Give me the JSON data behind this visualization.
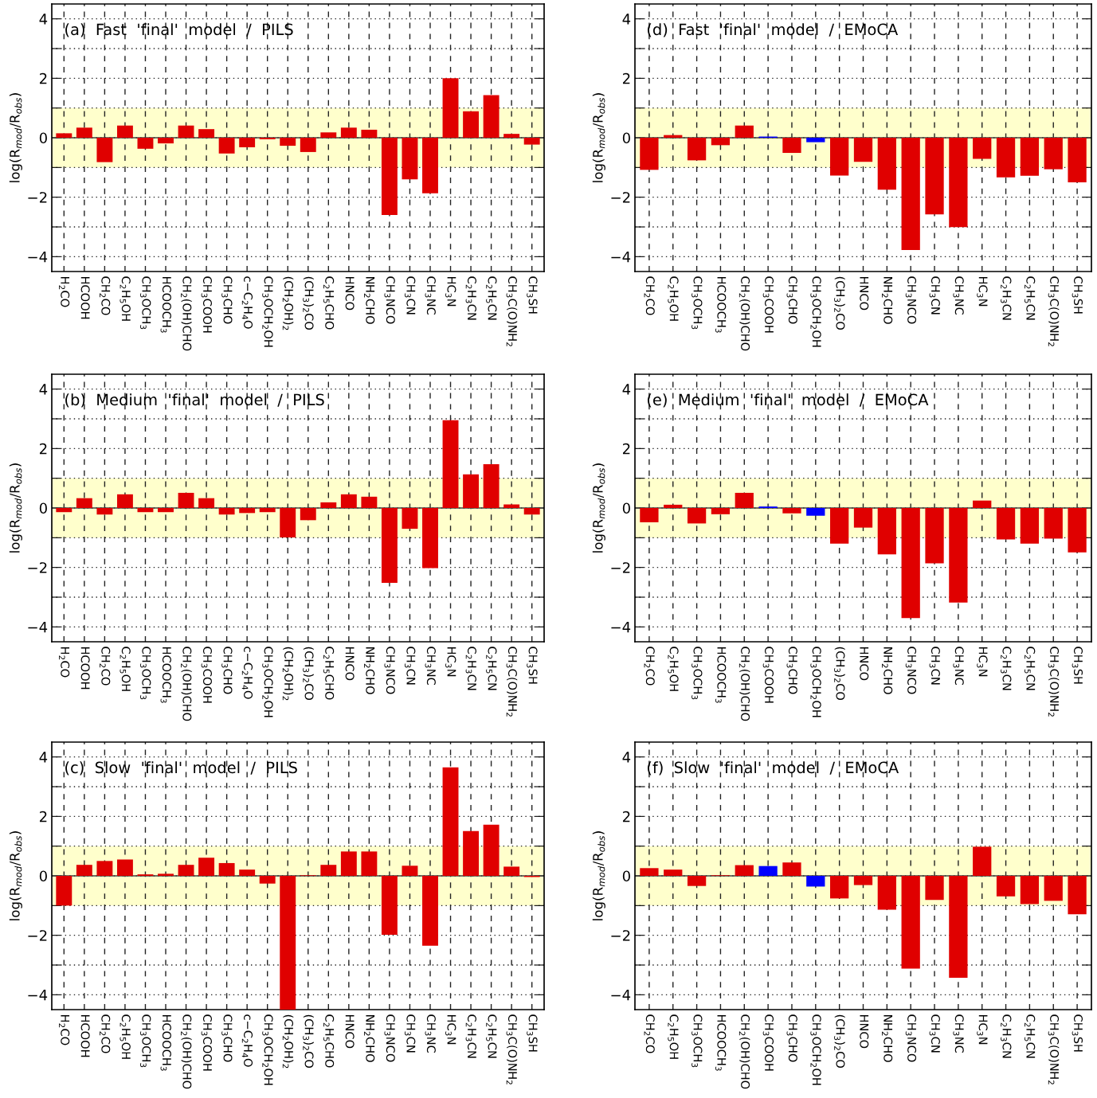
{
  "chart_data": [
    {
      "type": "bar",
      "title": "(a)  Fast  'final'  model  /  PILS",
      "ylabel": "log(R$_{mod}$/R$_{obs}$)",
      "categories": [
        "H$_{2}$CO",
        "HCOOH",
        "CH$_{2}$CO",
        "C$_{2}$H$_{5}$OH",
        "CH$_{3}$OCH$_{3}$",
        "HCOOCH$_{3}$",
        "CH$_{2}$(OH)CHO",
        "CH$_{3}$COOH",
        "CH$_{3}$CHO",
        "c−C$_{2}$H$_{4}$O",
        "CH$_{3}$OCH$_{2}$OH",
        "(CH$_{2}$OH)$_{2}$",
        "(CH$_{3}$)$_{2}$CO",
        "C$_{2}$H$_{5}$CHO",
        "HNCO",
        "NH$_{2}$CHO",
        "CH$_{3}$NCO",
        "CH$_{3}$CN",
        "CH$_{3}$NC",
        "HC$_{3}$N",
        "C$_{2}$H$_{3}$CN",
        "C$_{2}$H$_{5}$CN",
        "CH$_{3}$C(O)NH$_{2}$",
        "CH$_{3}$SH"
      ],
      "values": [
        0.15,
        0.34,
        -0.82,
        0.41,
        -0.37,
        -0.19,
        0.41,
        0.29,
        -0.53,
        -0.32,
        -0.05,
        -0.27,
        -0.48,
        0.18,
        0.34,
        0.27,
        -2.6,
        -1.4,
        -1.87,
        2.0,
        0.89,
        1.43,
        0.13,
        -0.23
      ],
      "colors": [
        "#e00000",
        "#e00000",
        "#e00000",
        "#e00000",
        "#e00000",
        "#e00000",
        "#e00000",
        "#e00000",
        "#e00000",
        "#e00000",
        "#e00000",
        "#e00000",
        "#e00000",
        "#e00000",
        "#e00000",
        "#e00000",
        "#e00000",
        "#e00000",
        "#e00000",
        "#e00000",
        "#e00000",
        "#e00000",
        "#e00000",
        "#e00000"
      ],
      "ylim": [
        -4.5,
        4.5
      ],
      "yticks": [
        -4,
        {
          "value": -3,
          "label": null
        },
        -2,
        {
          "value": -1,
          "label": null
        },
        0,
        {
          "value": 1,
          "label": null
        },
        2,
        {
          "value": 3,
          "label": null
        },
        4
      ],
      "grid": true,
      "bands": [
        {
          "axis": "y",
          "from": -1,
          "to": 1,
          "color": "#ffffcc"
        }
      ],
      "ref_lines": [
        {
          "axis": "y",
          "value": 0,
          "color": "#404040"
        }
      ]
    },
    {
      "type": "bar",
      "title": "(d)  Fast  'final'  model  /  EMoCA",
      "ylabel": "log(R$_{mod}$/R$_{obs}$)",
      "categories": [
        "CH$_{2}$CO",
        "C$_{2}$H$_{5}$OH",
        "CH$_{3}$OCH$_{3}$",
        "HCOOCH$_{3}$",
        "CH$_{2}$(OH)CHO",
        "CH$_{3}$COOH",
        "CH$_{3}$CHO",
        "CH$_{3}$OCH$_{2}$OH",
        "(CH$_{3}$)$_{2}$CO",
        "HNCO",
        "NH$_{2}$CHO",
        "CH$_{3}$NCO",
        "CH$_{3}$CN",
        "CH$_{3}$NC",
        "HC$_{3}$N",
        "C$_{2}$H$_{3}$CN",
        "C$_{2}$H$_{5}$CN",
        "CH$_{3}$C(O)NH$_{2}$",
        "CH$_{3}$SH"
      ],
      "values": [
        -1.08,
        0.09,
        -0.76,
        -0.25,
        0.41,
        0.04,
        -0.51,
        -0.15,
        -1.27,
        -0.81,
        -1.75,
        -3.78,
        -2.58,
        -3.01,
        -0.71,
        -1.33,
        -1.28,
        -1.06,
        -1.5
      ],
      "colors": [
        "#e00000",
        "#e00000",
        "#e00000",
        "#e00000",
        "#e00000",
        "#0000ff",
        "#e00000",
        "#0000ff",
        "#e00000",
        "#e00000",
        "#e00000",
        "#e00000",
        "#e00000",
        "#e00000",
        "#e00000",
        "#e00000",
        "#e00000",
        "#e00000",
        "#e00000"
      ],
      "ylim": [
        -4.5,
        4.5
      ],
      "yticks": [
        -4,
        {
          "value": -3,
          "label": null
        },
        -2,
        {
          "value": -1,
          "label": null
        },
        0,
        {
          "value": 1,
          "label": null
        },
        2,
        {
          "value": 3,
          "label": null
        },
        4
      ],
      "grid": true,
      "bands": [
        {
          "axis": "y",
          "from": -1,
          "to": 1,
          "color": "#ffffcc"
        }
      ],
      "ref_lines": [
        {
          "axis": "y",
          "value": 0,
          "color": "#404040"
        }
      ]
    },
    {
      "type": "bar",
      "title": "(b)  Medium  'final'  model  /  PILS",
      "ylabel": "log(R$_{mod}$/R$_{obs}$)",
      "categories": [
        "H$_{2}$CO",
        "HCOOH",
        "CH$_{2}$CO",
        "C$_{2}$H$_{5}$OH",
        "CH$_{3}$OCH$_{3}$",
        "HCOOCH$_{3}$",
        "CH$_{2}$(OH)CHO",
        "CH$_{3}$COOH",
        "CH$_{3}$CHO",
        "c−C$_{2}$H$_{4}$O",
        "CH$_{3}$OCH$_{2}$OH",
        "(CH$_{2}$OH)$_{2}$",
        "(CH$_{3}$)$_{2}$CO",
        "C$_{2}$H$_{5}$CHO",
        "HNCO",
        "NH$_{2}$CHO",
        "CH$_{3}$NCO",
        "CH$_{3}$CN",
        "CH$_{3}$NC",
        "HC$_{3}$N",
        "C$_{2}$H$_{3}$CN",
        "C$_{2}$H$_{5}$CN",
        "CH$_{3}$C(O)NH$_{2}$",
        "CH$_{3}$SH"
      ],
      "values": [
        -0.14,
        0.33,
        -0.22,
        0.46,
        -0.14,
        -0.14,
        0.51,
        0.33,
        -0.22,
        -0.17,
        -0.14,
        -0.99,
        -0.41,
        0.19,
        0.46,
        0.38,
        -2.52,
        -0.7,
        -2.02,
        2.95,
        1.13,
        1.47,
        0.12,
        -0.22
      ],
      "colors": [
        "#e00000",
        "#e00000",
        "#e00000",
        "#e00000",
        "#e00000",
        "#e00000",
        "#e00000",
        "#e00000",
        "#e00000",
        "#e00000",
        "#e00000",
        "#e00000",
        "#e00000",
        "#e00000",
        "#e00000",
        "#e00000",
        "#e00000",
        "#e00000",
        "#e00000",
        "#e00000",
        "#e00000",
        "#e00000",
        "#e00000",
        "#e00000"
      ],
      "ylim": [
        -4.5,
        4.5
      ],
      "yticks": [
        -4,
        {
          "value": -3,
          "label": null
        },
        -2,
        {
          "value": -1,
          "label": null
        },
        0,
        {
          "value": 1,
          "label": null
        },
        2,
        {
          "value": 3,
          "label": null
        },
        4
      ],
      "grid": true,
      "bands": [
        {
          "axis": "y",
          "from": -1,
          "to": 1,
          "color": "#ffffcc"
        }
      ],
      "ref_lines": [
        {
          "axis": "y",
          "value": 0,
          "color": "#404040"
        }
      ]
    },
    {
      "type": "bar",
      "title": "(e)  Medium  'final'  model  /  EMoCA",
      "ylabel": "log(R$_{mod}$/R$_{obs}$)",
      "categories": [
        "CH$_{2}$CO",
        "C$_{2}$H$_{5}$OH",
        "CH$_{3}$OCH$_{3}$",
        "HCOOCH$_{3}$",
        "CH$_{2}$(OH)CHO",
        "CH$_{3}$COOH",
        "CH$_{3}$CHO",
        "CH$_{3}$OCH$_{2}$OH",
        "(CH$_{3}$)$_{2}$CO",
        "HNCO",
        "NH$_{2}$CHO",
        "CH$_{3}$NCO",
        "CH$_{3}$CN",
        "CH$_{3}$NC",
        "HC$_{3}$N",
        "C$_{2}$H$_{3}$CN",
        "C$_{2}$H$_{5}$CN",
        "CH$_{3}$C(O)NH$_{2}$",
        "CH$_{3}$SH"
      ],
      "values": [
        -0.48,
        0.11,
        -0.52,
        -0.21,
        0.51,
        0.05,
        -0.18,
        -0.26,
        -1.2,
        -0.66,
        -1.56,
        -3.7,
        -1.86,
        -3.18,
        0.25,
        -1.06,
        -1.2,
        -1.03,
        -1.49
      ],
      "colors": [
        "#e00000",
        "#e00000",
        "#e00000",
        "#e00000",
        "#e00000",
        "#0000ff",
        "#e00000",
        "#0000ff",
        "#e00000",
        "#e00000",
        "#e00000",
        "#e00000",
        "#e00000",
        "#e00000",
        "#e00000",
        "#e00000",
        "#e00000",
        "#e00000",
        "#e00000"
      ],
      "ylim": [
        -4.5,
        4.5
      ],
      "yticks": [
        -4,
        {
          "value": -3,
          "label": null
        },
        -2,
        {
          "value": -1,
          "label": null
        },
        0,
        {
          "value": 1,
          "label": null
        },
        2,
        {
          "value": 3,
          "label": null
        },
        4
      ],
      "grid": true,
      "bands": [
        {
          "axis": "y",
          "from": -1,
          "to": 1,
          "color": "#ffffcc"
        }
      ],
      "ref_lines": [
        {
          "axis": "y",
          "value": 0,
          "color": "#404040"
        }
      ]
    },
    {
      "type": "bar",
      "title": "(c)  Slow  'final'  model  /  PILS",
      "ylabel": "log(R$_{mod}$/R$_{obs}$)",
      "categories": [
        "H$_{2}$CO",
        "HCOOH",
        "CH$_{2}$CO",
        "C$_{2}$H$_{5}$OH",
        "CH$_{3}$OCH$_{3}$",
        "HCOOCH$_{3}$",
        "CH$_{2}$(OH)CHO",
        "CH$_{3}$COOH",
        "CH$_{3}$CHO",
        "c−C$_{2}$H$_{4}$O",
        "CH$_{3}$OCH$_{2}$OH",
        "(CH$_{2}$OH)$_{2}$",
        "(CH$_{3}$)$_{2}$CO",
        "C$_{2}$H$_{5}$CHO",
        "HNCO",
        "NH$_{2}$CHO",
        "CH$_{3}$NCO",
        "CH$_{3}$CN",
        "CH$_{3}$NC",
        "HC$_{3}$N",
        "C$_{2}$H$_{3}$CN",
        "C$_{2}$H$_{5}$CN",
        "CH$_{3}$C(O)NH$_{2}$",
        "CH$_{3}$SH"
      ],
      "values": [
        -1.0,
        0.37,
        0.5,
        0.55,
        0.05,
        0.07,
        0.37,
        0.61,
        0.43,
        0.21,
        -0.26,
        -4.5,
        0.02,
        0.37,
        0.82,
        0.82,
        -1.98,
        0.34,
        -2.35,
        3.65,
        1.51,
        1.72,
        0.31,
        -0.04
      ],
      "colors": [
        "#e00000",
        "#e00000",
        "#e00000",
        "#e00000",
        "#e00000",
        "#e00000",
        "#e00000",
        "#e00000",
        "#e00000",
        "#e00000",
        "#e00000",
        "#e00000",
        "#e00000",
        "#e00000",
        "#e00000",
        "#e00000",
        "#e00000",
        "#e00000",
        "#e00000",
        "#e00000",
        "#e00000",
        "#e00000",
        "#e00000",
        "#e00000"
      ],
      "ylim": [
        -4.5,
        4.5
      ],
      "yticks": [
        -4,
        {
          "value": -3,
          "label": null
        },
        -2,
        {
          "value": -1,
          "label": null
        },
        0,
        {
          "value": 1,
          "label": null
        },
        2,
        {
          "value": 3,
          "label": null
        },
        4
      ],
      "grid": true,
      "bands": [
        {
          "axis": "y",
          "from": -1,
          "to": 1,
          "color": "#ffffcc"
        }
      ],
      "ref_lines": [
        {
          "axis": "y",
          "value": 0,
          "color": "#404040"
        }
      ]
    },
    {
      "type": "bar",
      "title": "(f)  Slow  'final'  model  /  EMoCA",
      "ylabel": "log(R$_{mod}$/R$_{obs}$)",
      "categories": [
        "CH$_{2}$CO",
        "C$_{2}$H$_{5}$OH",
        "CH$_{3}$OCH$_{3}$",
        "HCOOCH$_{3}$",
        "CH$_{2}$(OH)CHO",
        "CH$_{3}$COOH",
        "CH$_{3}$CHO",
        "CH$_{3}$OCH$_{2}$OH",
        "(CH$_{3}$)$_{2}$CO",
        "HNCO",
        "NH$_{2}$CHO",
        "CH$_{3}$NCO",
        "CH$_{3}$CN",
        "CH$_{3}$NC",
        "HC$_{3}$N",
        "C$_{2}$H$_{3}$CN",
        "C$_{2}$H$_{5}$CN",
        "CH$_{3}$C(O)NH$_{2}$",
        "CH$_{3}$SH"
      ],
      "values": [
        0.26,
        0.21,
        -0.34,
        0.02,
        0.36,
        0.33,
        0.45,
        -0.36,
        -0.76,
        -0.31,
        -1.14,
        -3.12,
        -0.81,
        -3.43,
        0.98,
        -0.69,
        -0.95,
        -0.84,
        -1.29
      ],
      "colors": [
        "#e00000",
        "#e00000",
        "#e00000",
        "#e00000",
        "#e00000",
        "#0000ff",
        "#e00000",
        "#0000ff",
        "#e00000",
        "#e00000",
        "#e00000",
        "#e00000",
        "#e00000",
        "#e00000",
        "#e00000",
        "#e00000",
        "#e00000",
        "#e00000",
        "#e00000"
      ],
      "ylim": [
        -4.5,
        4.5
      ],
      "yticks": [
        -4,
        {
          "value": -3,
          "label": null
        },
        -2,
        {
          "value": -1,
          "label": null
        },
        0,
        {
          "value": 1,
          "label": null
        },
        2,
        {
          "value": 3,
          "label": null
        },
        4
      ],
      "grid": true,
      "bands": [
        {
          "axis": "y",
          "from": -1,
          "to": 1,
          "color": "#ffffcc"
        }
      ],
      "ref_lines": [
        {
          "axis": "y",
          "value": 0,
          "color": "#404040"
        }
      ]
    }
  ]
}
